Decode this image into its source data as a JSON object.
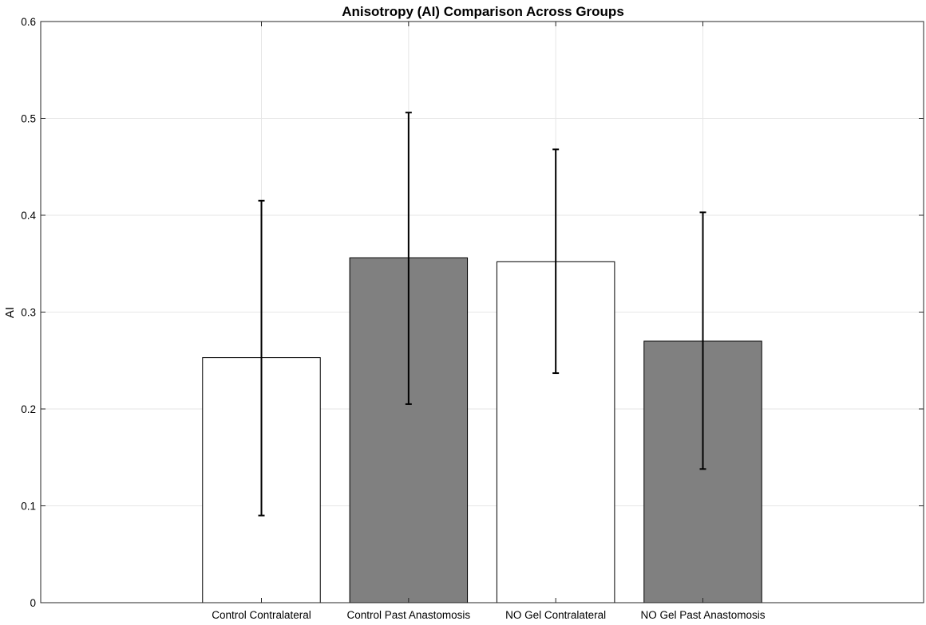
{
  "chart_data": {
    "type": "bar",
    "title": "Anisotropy (AI) Comparison Across Groups",
    "xlabel": "",
    "ylabel": "AI",
    "categories": [
      "Control Contralateral",
      "Control Past Anastomosis",
      "NO Gel Contralateral",
      "NO Gel Past Anastomosis"
    ],
    "values": [
      0.253,
      0.356,
      0.352,
      0.27
    ],
    "error_low": [
      0.09,
      0.205,
      0.237,
      0.138
    ],
    "error_high": [
      0.415,
      0.506,
      0.468,
      0.403
    ],
    "bar_colors": [
      "#ffffff",
      "#808080",
      "#ffffff",
      "#808080"
    ],
    "ylim": [
      0,
      0.6
    ],
    "yticks": [
      0,
      0.1,
      0.2,
      0.3,
      0.4,
      0.5,
      0.6
    ],
    "ytick_labels": [
      "0",
      "0.1",
      "0.2",
      "0.3",
      "0.4",
      "0.5",
      "0.6"
    ],
    "grid": true,
    "legend": "none",
    "colors": {
      "axis": "#262626",
      "grid": "#e6e6e6",
      "bar_edge": "#000000",
      "error_bar": "#000000"
    }
  }
}
